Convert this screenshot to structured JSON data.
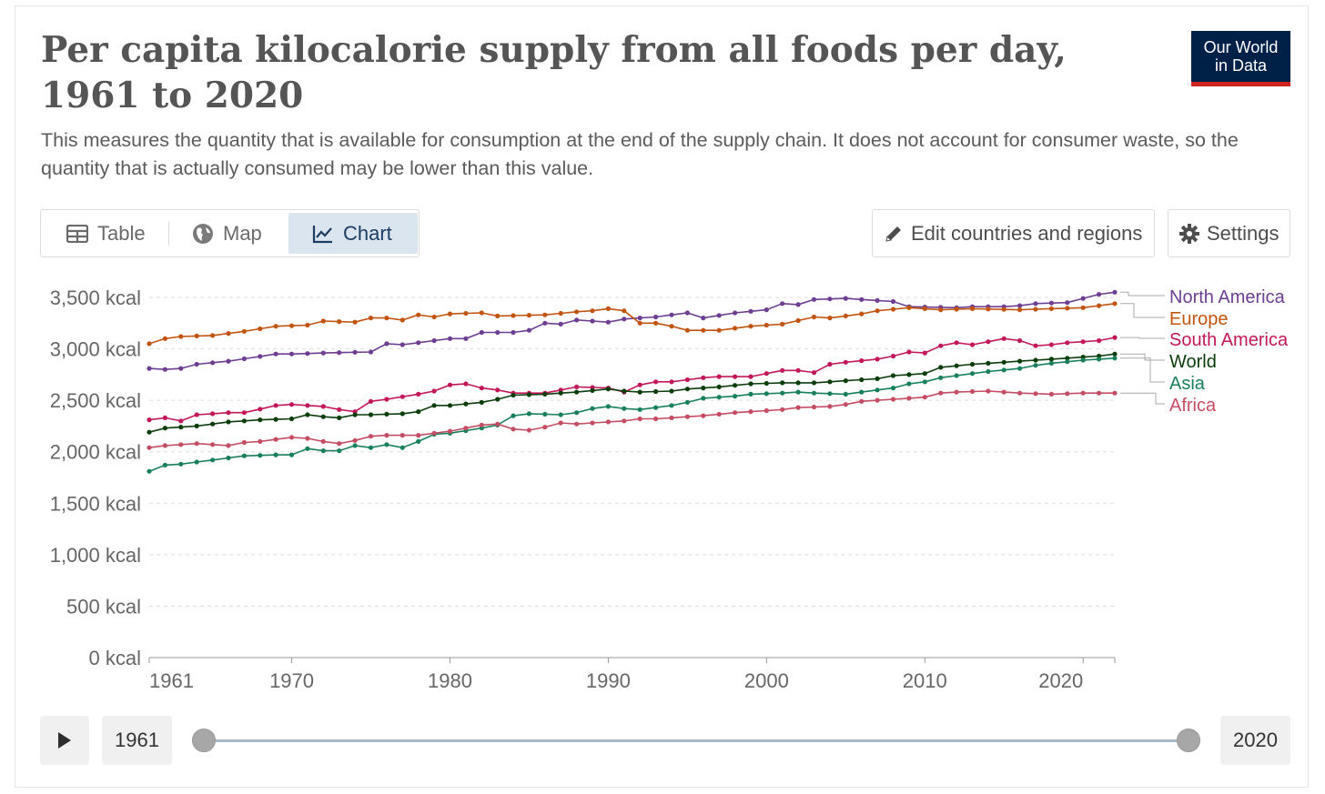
{
  "header": {
    "title": "Per capita kilocalorie supply from all foods per day, 1961 to 2020",
    "subtitle": "This measures the quantity that is available for consumption at the end of the supply chain. It does not account for consumer waste, so the quantity that is actually consumed may be lower than this value.",
    "logo_line1": "Our World",
    "logo_line2": "in Data"
  },
  "tabs": {
    "table": "Table",
    "map": "Map",
    "chart": "Chart",
    "active": "chart"
  },
  "controls": {
    "edit_label": "Edit countries and regions",
    "settings_label": "Settings"
  },
  "timeline": {
    "start_year": "1961",
    "end_year": "2020"
  },
  "colors": {
    "accent_active_tab": "#dbe5f0",
    "logo_bg": "#002147",
    "logo_stripe": "#ce261e"
  },
  "chart_data": {
    "type": "line",
    "title": "Per capita kilocalorie supply from all foods per day, 1961 to 2020",
    "xlabel": "",
    "ylabel": "",
    "xlim": [
      1961,
      2020
    ],
    "ylim": [
      0,
      3500
    ],
    "x_ticks": [
      "1961",
      "1970",
      "1980",
      "1990",
      "2000",
      "2010",
      "2020"
    ],
    "y_ticks": [
      "0 kcal",
      "500 kcal",
      "1,000 kcal",
      "1,500 kcal",
      "2,000 kcal",
      "2,500 kcal",
      "3,000 kcal",
      "3,500 kcal"
    ],
    "grid": "horizontal dashed",
    "legend_position": "right, end-of-line labels",
    "series": [
      {
        "name": "North America",
        "color": "#6d3e91",
        "anchors": [
          [
            1961,
            2810
          ],
          [
            1962,
            2800
          ],
          [
            1963,
            2810
          ],
          [
            1964,
            2850
          ],
          [
            1966,
            2880
          ],
          [
            1969,
            2950
          ],
          [
            1970,
            2950
          ],
          [
            1972,
            2960
          ],
          [
            1975,
            2970
          ],
          [
            1976,
            3050
          ],
          [
            1977,
            3040
          ],
          [
            1980,
            3100
          ],
          [
            1981,
            3100
          ],
          [
            1982,
            3160
          ],
          [
            1984,
            3160
          ],
          [
            1985,
            3180
          ],
          [
            1986,
            3250
          ],
          [
            1987,
            3240
          ],
          [
            1988,
            3280
          ],
          [
            1990,
            3260
          ],
          [
            1991,
            3290
          ],
          [
            1993,
            3310
          ],
          [
            1995,
            3350
          ],
          [
            1996,
            3300
          ],
          [
            1998,
            3350
          ],
          [
            2000,
            3380
          ],
          [
            2001,
            3440
          ],
          [
            2002,
            3430
          ],
          [
            2003,
            3480
          ],
          [
            2005,
            3490
          ],
          [
            2006,
            3480
          ],
          [
            2008,
            3460
          ],
          [
            2009,
            3410
          ],
          [
            2012,
            3400
          ],
          [
            2013,
            3410
          ],
          [
            2015,
            3410
          ],
          [
            2016,
            3420
          ],
          [
            2017,
            3440
          ],
          [
            2019,
            3450
          ],
          [
            2020,
            3490
          ],
          [
            2021,
            3530
          ],
          [
            2022,
            3550
          ]
        ]
      },
      {
        "name": "Europe",
        "color": "#c15510",
        "anchors": [
          [
            1961,
            3050
          ],
          [
            1962,
            3100
          ],
          [
            1963,
            3120
          ],
          [
            1965,
            3130
          ],
          [
            1967,
            3170
          ],
          [
            1969,
            3220
          ],
          [
            1971,
            3230
          ],
          [
            1972,
            3270
          ],
          [
            1974,
            3260
          ],
          [
            1975,
            3300
          ],
          [
            1976,
            3300
          ],
          [
            1977,
            3280
          ],
          [
            1978,
            3330
          ],
          [
            1979,
            3310
          ],
          [
            1980,
            3340
          ],
          [
            1982,
            3350
          ],
          [
            1983,
            3320
          ],
          [
            1986,
            3330
          ],
          [
            1988,
            3360
          ],
          [
            1989,
            3370
          ],
          [
            1990,
            3390
          ],
          [
            1991,
            3370
          ],
          [
            1992,
            3250
          ],
          [
            1993,
            3250
          ],
          [
            1994,
            3220
          ],
          [
            1995,
            3180
          ],
          [
            1997,
            3180
          ],
          [
            1999,
            3220
          ],
          [
            2001,
            3240
          ],
          [
            2003,
            3310
          ],
          [
            2004,
            3300
          ],
          [
            2006,
            3340
          ],
          [
            2007,
            3370
          ],
          [
            2009,
            3400
          ],
          [
            2011,
            3380
          ],
          [
            2013,
            3390
          ],
          [
            2016,
            3380
          ],
          [
            2018,
            3390
          ],
          [
            2020,
            3400
          ],
          [
            2022,
            3440
          ]
        ]
      },
      {
        "name": "South America",
        "color": "#c2185b",
        "anchors": [
          [
            1961,
            2310
          ],
          [
            1962,
            2330
          ],
          [
            1963,
            2300
          ],
          [
            1964,
            2360
          ],
          [
            1966,
            2380
          ],
          [
            1967,
            2380
          ],
          [
            1969,
            2450
          ],
          [
            1970,
            2460
          ],
          [
            1972,
            2440
          ],
          [
            1973,
            2410
          ],
          [
            1974,
            2390
          ],
          [
            1975,
            2490
          ],
          [
            1976,
            2510
          ],
          [
            1978,
            2560
          ],
          [
            1979,
            2590
          ],
          [
            1980,
            2650
          ],
          [
            1981,
            2660
          ],
          [
            1982,
            2620
          ],
          [
            1983,
            2600
          ],
          [
            1984,
            2570
          ],
          [
            1986,
            2570
          ],
          [
            1987,
            2600
          ],
          [
            1988,
            2630
          ],
          [
            1990,
            2620
          ],
          [
            1991,
            2580
          ],
          [
            1992,
            2650
          ],
          [
            1993,
            2680
          ],
          [
            1994,
            2680
          ],
          [
            1996,
            2720
          ],
          [
            1997,
            2730
          ],
          [
            1999,
            2730
          ],
          [
            2000,
            2760
          ],
          [
            2001,
            2790
          ],
          [
            2002,
            2790
          ],
          [
            2003,
            2770
          ],
          [
            2004,
            2850
          ],
          [
            2005,
            2870
          ],
          [
            2007,
            2900
          ],
          [
            2008,
            2930
          ],
          [
            2009,
            2970
          ],
          [
            2010,
            2960
          ],
          [
            2011,
            3030
          ],
          [
            2012,
            3060
          ],
          [
            2013,
            3040
          ],
          [
            2014,
            3070
          ],
          [
            2015,
            3100
          ],
          [
            2016,
            3080
          ],
          [
            2017,
            3030
          ],
          [
            2018,
            3040
          ],
          [
            2019,
            3060
          ],
          [
            2020,
            3070
          ],
          [
            2021,
            3080
          ],
          [
            2022,
            3110
          ]
        ]
      },
      {
        "name": "World",
        "color": "#0b3d0b",
        "anchors": [
          [
            1961,
            2190
          ],
          [
            1962,
            2230
          ],
          [
            1964,
            2250
          ],
          [
            1966,
            2290
          ],
          [
            1968,
            2310
          ],
          [
            1970,
            2320
          ],
          [
            1971,
            2360
          ],
          [
            1972,
            2340
          ],
          [
            1973,
            2330
          ],
          [
            1974,
            2360
          ],
          [
            1975,
            2360
          ],
          [
            1977,
            2370
          ],
          [
            1978,
            2390
          ],
          [
            1979,
            2450
          ],
          [
            1980,
            2450
          ],
          [
            1982,
            2480
          ],
          [
            1983,
            2510
          ],
          [
            1984,
            2550
          ],
          [
            1986,
            2560
          ],
          [
            1988,
            2580
          ],
          [
            1990,
            2610
          ],
          [
            1991,
            2590
          ],
          [
            1992,
            2580
          ],
          [
            1994,
            2590
          ],
          [
            1995,
            2610
          ],
          [
            1997,
            2630
          ],
          [
            1999,
            2660
          ],
          [
            2001,
            2670
          ],
          [
            2003,
            2670
          ],
          [
            2005,
            2690
          ],
          [
            2007,
            2710
          ],
          [
            2008,
            2740
          ],
          [
            2010,
            2760
          ],
          [
            2011,
            2820
          ],
          [
            2013,
            2850
          ],
          [
            2015,
            2870
          ],
          [
            2017,
            2890
          ],
          [
            2019,
            2910
          ],
          [
            2021,
            2930
          ],
          [
            2022,
            2950
          ]
        ]
      },
      {
        "name": "Asia",
        "color": "#18805a",
        "anchors": [
          [
            1961,
            1810
          ],
          [
            1962,
            1870
          ],
          [
            1963,
            1880
          ],
          [
            1965,
            1920
          ],
          [
            1967,
            1960
          ],
          [
            1969,
            1970
          ],
          [
            1970,
            1970
          ],
          [
            1971,
            2030
          ],
          [
            1972,
            2010
          ],
          [
            1973,
            2010
          ],
          [
            1974,
            2060
          ],
          [
            1975,
            2040
          ],
          [
            1976,
            2070
          ],
          [
            1977,
            2040
          ],
          [
            1978,
            2100
          ],
          [
            1979,
            2170
          ],
          [
            1980,
            2180
          ],
          [
            1982,
            2230
          ],
          [
            1983,
            2260
          ],
          [
            1984,
            2350
          ],
          [
            1985,
            2370
          ],
          [
            1987,
            2360
          ],
          [
            1988,
            2380
          ],
          [
            1989,
            2420
          ],
          [
            1990,
            2440
          ],
          [
            1991,
            2420
          ],
          [
            1992,
            2410
          ],
          [
            1994,
            2450
          ],
          [
            1995,
            2480
          ],
          [
            1996,
            2520
          ],
          [
            1998,
            2540
          ],
          [
            1999,
            2560
          ],
          [
            2001,
            2570
          ],
          [
            2002,
            2580
          ],
          [
            2003,
            2570
          ],
          [
            2005,
            2560
          ],
          [
            2006,
            2580
          ],
          [
            2008,
            2620
          ],
          [
            2009,
            2660
          ],
          [
            2010,
            2680
          ],
          [
            2011,
            2720
          ],
          [
            2012,
            2740
          ],
          [
            2014,
            2780
          ],
          [
            2016,
            2810
          ],
          [
            2017,
            2840
          ],
          [
            2018,
            2860
          ],
          [
            2020,
            2890
          ],
          [
            2022,
            2910
          ]
        ]
      },
      {
        "name": "Africa",
        "color": "#c44d64",
        "anchors": [
          [
            1961,
            2040
          ],
          [
            1962,
            2060
          ],
          [
            1964,
            2080
          ],
          [
            1966,
            2060
          ],
          [
            1967,
            2090
          ],
          [
            1968,
            2100
          ],
          [
            1969,
            2120
          ],
          [
            1970,
            2140
          ],
          [
            1971,
            2130
          ],
          [
            1972,
            2100
          ],
          [
            1973,
            2080
          ],
          [
            1974,
            2110
          ],
          [
            1975,
            2150
          ],
          [
            1976,
            2160
          ],
          [
            1978,
            2160
          ],
          [
            1980,
            2200
          ],
          [
            1981,
            2230
          ],
          [
            1982,
            2260
          ],
          [
            1983,
            2270
          ],
          [
            1984,
            2220
          ],
          [
            1985,
            2210
          ],
          [
            1986,
            2240
          ],
          [
            1987,
            2280
          ],
          [
            1988,
            2270
          ],
          [
            1990,
            2290
          ],
          [
            1991,
            2300
          ],
          [
            1992,
            2320
          ],
          [
            1993,
            2320
          ],
          [
            1994,
            2330
          ],
          [
            1996,
            2350
          ],
          [
            1998,
            2380
          ],
          [
            2000,
            2400
          ],
          [
            2001,
            2410
          ],
          [
            2002,
            2430
          ],
          [
            2004,
            2440
          ],
          [
            2005,
            2460
          ],
          [
            2006,
            2490
          ],
          [
            2008,
            2510
          ],
          [
            2010,
            2530
          ],
          [
            2011,
            2570
          ],
          [
            2012,
            2580
          ],
          [
            2014,
            2590
          ],
          [
            2016,
            2570
          ],
          [
            2018,
            2560
          ],
          [
            2020,
            2570
          ],
          [
            2022,
            2570
          ]
        ]
      }
    ]
  }
}
